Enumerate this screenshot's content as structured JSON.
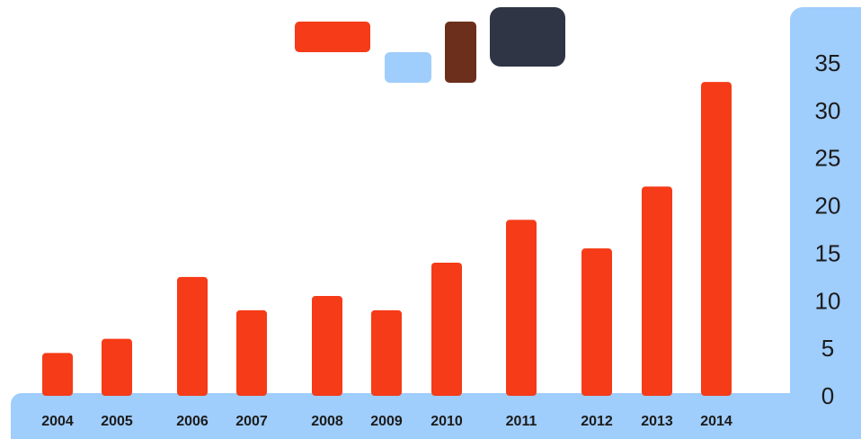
{
  "colors": {
    "bar": "#f53b17",
    "axis_band": "#9fcdfc",
    "background": "#ffffff",
    "legend_swatches": [
      "#f53b17",
      "#9fcdfc",
      "#6b2f1c",
      "#2f3545"
    ]
  },
  "legend": {
    "placement": "top-center",
    "swatch_icons": [
      "legend-swatch-red",
      "legend-swatch-light-blue",
      "legend-swatch-brown",
      "legend-swatch-dark-slate"
    ]
  },
  "chart_data": {
    "type": "bar",
    "categories": [
      "2004",
      "2005",
      "2006",
      "2007",
      "2008",
      "2009",
      "2010",
      "2011",
      "2012",
      "2013",
      "2014"
    ],
    "series": [
      {
        "values": [
          4.5,
          6,
          12.5,
          9,
          10.5,
          9,
          14,
          18.5,
          15.5,
          22,
          33
        ]
      }
    ],
    "y_ticks": [
      "0",
      "5",
      "10",
      "15",
      "20",
      "25",
      "30",
      "35"
    ],
    "ylim": [
      0,
      35
    ],
    "y_axis_side": "right",
    "grid": false,
    "title": "",
    "xlabel": "",
    "ylabel": ""
  }
}
